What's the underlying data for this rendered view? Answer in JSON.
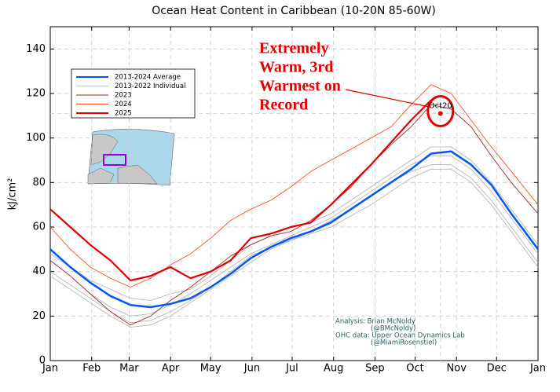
{
  "chart_data": {
    "type": "line",
    "title": "Ocean Heat Content in Caribbean (10-20N 85-60W)",
    "ylabel": "kJ/cm²",
    "xlim": [
      0,
      365
    ],
    "xticks": [
      {
        "value": 0,
        "label": "Jan"
      },
      {
        "value": 31,
        "label": "Feb"
      },
      {
        "value": 59,
        "label": "Mar"
      },
      {
        "value": 90,
        "label": "Apr"
      },
      {
        "value": 120,
        "label": "May"
      },
      {
        "value": 151,
        "label": "Jun"
      },
      {
        "value": 181,
        "label": "Jul"
      },
      {
        "value": 212,
        "label": "Aug"
      },
      {
        "value": 243,
        "label": "Sep"
      },
      {
        "value": 273,
        "label": "Oct"
      },
      {
        "value": 304,
        "label": "Nov"
      },
      {
        "value": 334,
        "label": "Dec"
      },
      {
        "value": 365,
        "label": "Jan"
      }
    ],
    "ylim": [
      0,
      150
    ],
    "yticks": [
      0,
      20,
      40,
      60,
      80,
      100,
      120,
      140
    ],
    "grid": true,
    "legend": "upper left",
    "x": [
      0,
      15,
      30,
      45,
      60,
      75,
      90,
      105,
      120,
      135,
      150,
      165,
      180,
      195,
      210,
      225,
      240,
      255,
      270,
      285,
      300,
      315,
      330,
      345,
      365
    ],
    "series": [
      {
        "name": "2013-2024 Average",
        "color": "#0055ff",
        "linewidth": 2.5,
        "values": [
          50,
          42,
          35,
          29,
          25,
          24,
          25.5,
          28,
          33,
          39,
          46,
          51,
          55,
          58,
          62,
          68,
          74,
          80,
          86,
          93,
          94,
          88,
          79,
          66,
          50
        ]
      },
      {
        "name": "2013-2022 Individual",
        "color": "#b0b0b0",
        "linewidth": 0.8,
        "lines": [
          [
            45,
            38,
            30,
            24,
            20,
            21,
            25,
            30,
            36,
            42,
            48,
            52,
            56,
            60,
            64,
            70,
            76,
            82,
            88,
            92,
            92,
            86,
            76,
            64,
            48
          ],
          [
            40,
            34,
            28,
            22,
            17,
            18,
            22,
            27,
            33,
            40,
            47,
            51,
            54,
            58,
            63,
            68,
            74,
            80,
            85,
            88,
            88,
            82,
            72,
            60,
            44
          ],
          [
            48,
            42,
            36,
            32,
            28,
            27,
            30,
            32,
            38,
            45,
            52,
            56,
            60,
            62,
            66,
            72,
            78,
            84,
            90,
            96,
            96,
            90,
            80,
            68,
            52
          ],
          [
            38,
            32,
            26,
            20,
            15,
            16,
            20,
            26,
            32,
            38,
            44,
            50,
            54,
            57,
            60,
            65,
            70,
            76,
            82,
            86,
            86,
            80,
            70,
            58,
            42
          ]
        ]
      },
      {
        "name": "2023",
        "color": "#a52a2a",
        "linewidth": 0.9,
        "values": [
          45,
          38,
          30,
          22,
          16,
          20,
          27,
          33,
          40,
          47,
          52,
          56,
          58,
          63,
          70,
          78,
          88,
          97,
          105,
          115,
          113,
          105,
          92,
          80,
          66
        ]
      },
      {
        "name": "2024",
        "color": "#ff5030",
        "linewidth": 0.9,
        "values": [
          60,
          50,
          42,
          37,
          33,
          37,
          43,
          48,
          55,
          63,
          68,
          72,
          78,
          85,
          90,
          95,
          100,
          105,
          115,
          124,
          120,
          108,
          96,
          85,
          70
        ]
      },
      {
        "name": "2025",
        "color": "#e00000",
        "linewidth": 2.2,
        "values": [
          68,
          60,
          52,
          45,
          36,
          38,
          42,
          37,
          40,
          45,
          55,
          57,
          60,
          62,
          70,
          79,
          88,
          98,
          108,
          117,
          null,
          null,
          null,
          null,
          null
        ]
      }
    ],
    "marker": {
      "x": 292,
      "y": 111,
      "label": "Oct20",
      "color": "#e00000"
    },
    "annotation": [
      "Extremely",
      "Warm, 3rd",
      "Warmest on",
      "Record"
    ],
    "credits": [
      "Analysis: Brian McNoldy",
      "(@BMcNoldy)",
      "OHC data: Upper Ocean Dynamics Lab",
      "(@MiamiRosenstiel)"
    ]
  }
}
